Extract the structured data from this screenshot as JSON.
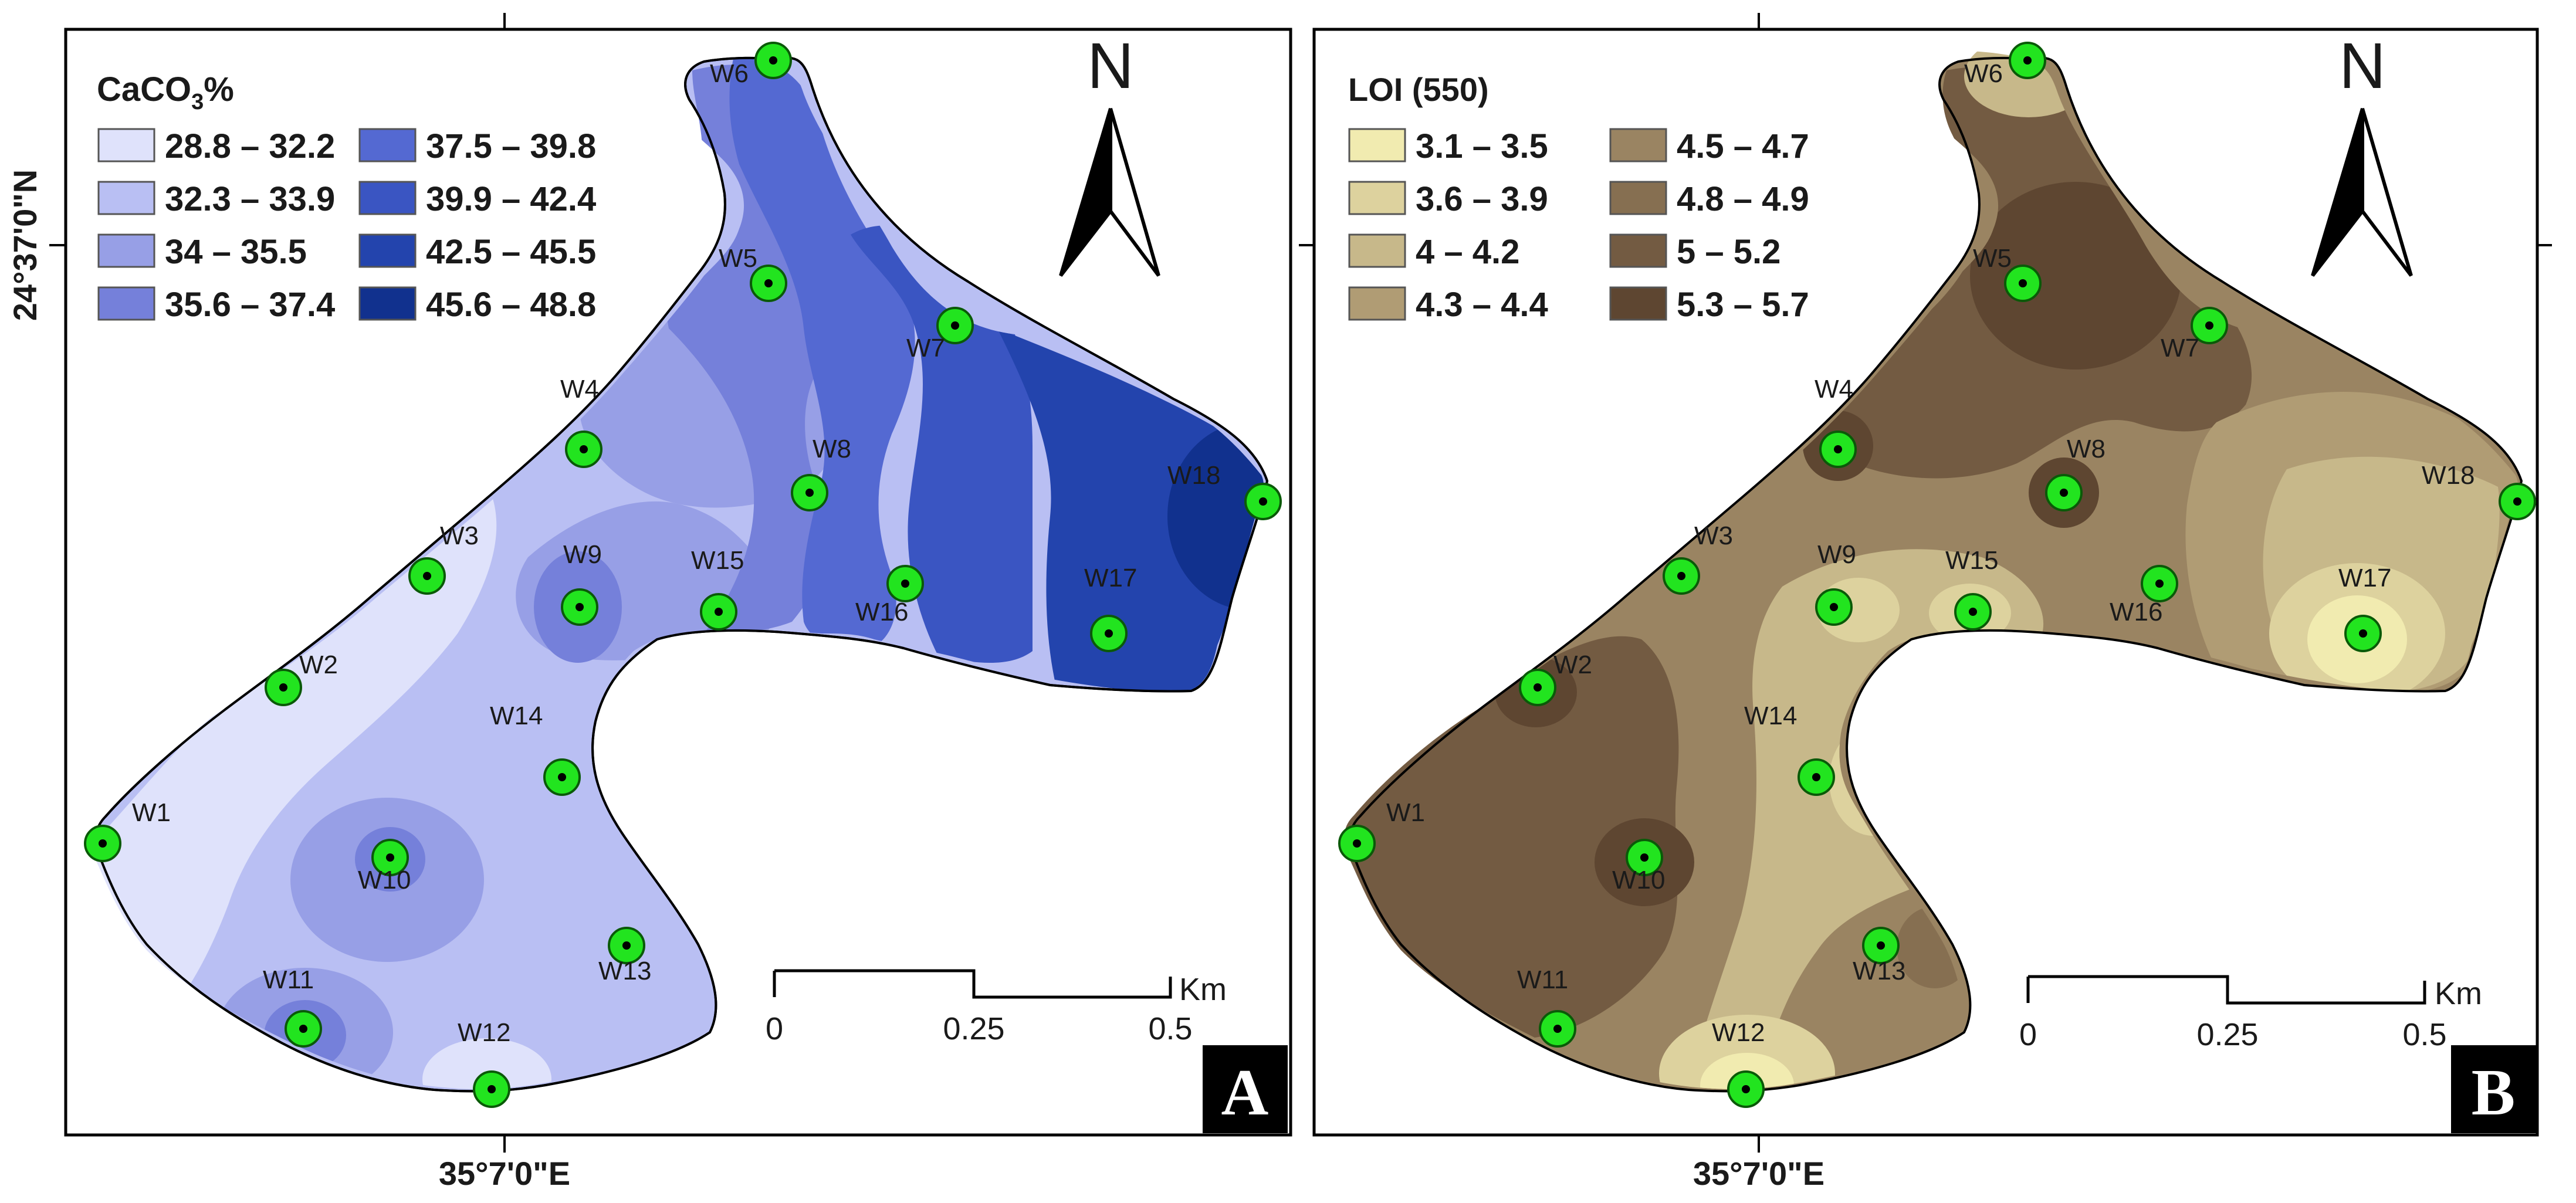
{
  "figure": {
    "coordinates": {
      "latitude_label": "24°37'0\"N",
      "longitude_label": "35°7'0\"E"
    },
    "north_arrow_label": "N",
    "panels": [
      {
        "letter": "A",
        "legend_title": "CaCO",
        "legend_title_subscript": "3",
        "legend_title_suffix": "%",
        "classes": [
          {
            "label": "28.8 – 32.2",
            "color": "#dfe2fb"
          },
          {
            "label": "32.3 – 33.9",
            "color": "#b9bff3"
          },
          {
            "label": "34 – 35.5",
            "color": "#979fe6"
          },
          {
            "label": "35.6 – 37.4",
            "color": "#7580da"
          },
          {
            "label": "37.5 – 39.8",
            "color": "#5469d2"
          },
          {
            "label": "39.9 – 42.4",
            "color": "#3a55c2"
          },
          {
            "label": "42.5 – 45.5",
            "color": "#2344ad"
          },
          {
            "label": "45.6 – 48.8",
            "color": "#11318e"
          }
        ]
      },
      {
        "letter": "B",
        "legend_title": "LOI (550)",
        "legend_title_subscript": "",
        "legend_title_suffix": "",
        "classes": [
          {
            "label": "3.1 – 3.5",
            "color": "#f1ebb0"
          },
          {
            "label": "3.6 – 3.9",
            "color": "#ddd29e"
          },
          {
            "label": "4 – 4.2",
            "color": "#c7b88a"
          },
          {
            "label": "4.3 – 4.4",
            "color": "#b09c74"
          },
          {
            "label": "4.5 – 4.7",
            "color": "#9a8462"
          },
          {
            "label": "4.8 – 4.9",
            "color": "#866f51"
          },
          {
            "label": "5 – 5.2",
            "color": "#735b42"
          },
          {
            "label": "5.3 – 5.7",
            "color": "#5e4631"
          }
        ]
      }
    ],
    "scale_bar": {
      "ticks": [
        "0",
        "0.25",
        "0.5"
      ],
      "unit": "Km"
    },
    "wells": [
      "W1",
      "W2",
      "W3",
      "W4",
      "W5",
      "W6",
      "W7",
      "W8",
      "W9",
      "W10",
      "W11",
      "W12",
      "W13",
      "W14",
      "W15",
      "W16",
      "W17",
      "W18"
    ],
    "well_marker_color": "#22e41f"
  }
}
